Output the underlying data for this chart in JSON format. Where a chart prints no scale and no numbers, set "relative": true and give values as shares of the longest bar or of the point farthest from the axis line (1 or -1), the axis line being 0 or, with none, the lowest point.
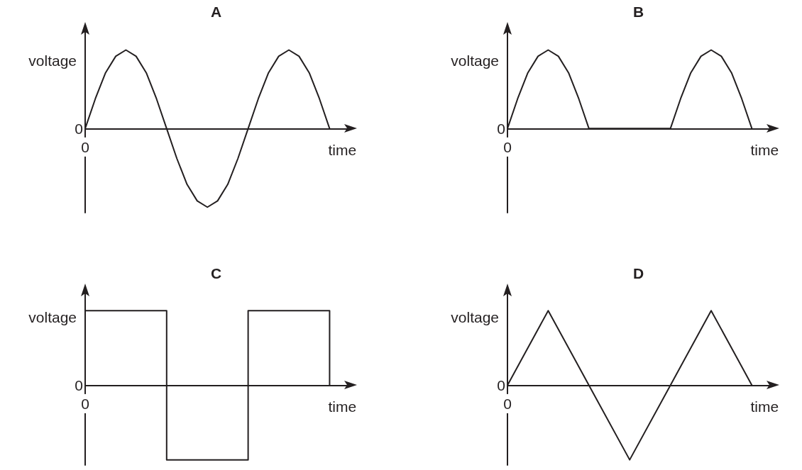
{
  "chart_data": [
    {
      "type": "line",
      "title": "A",
      "xlabel": "time",
      "ylabel": "voltage",
      "relative": true,
      "marker": "none",
      "color": "#231f20",
      "annotations": [
        "0",
        "0"
      ],
      "categories": [
        null,
        null,
        null,
        null,
        null,
        null,
        null,
        null,
        null,
        null,
        null,
        null,
        null,
        null,
        null,
        null,
        null,
        null,
        null,
        null,
        null,
        null,
        null,
        null,
        null
      ],
      "values": [
        0,
        0.38,
        0.71,
        0.92,
        1,
        0.92,
        0.71,
        0.38,
        0,
        -0.38,
        -0.71,
        -0.92,
        -1,
        -0.92,
        -0.71,
        -0.38,
        0,
        0.38,
        0.71,
        0.92,
        1,
        0.92,
        0.71,
        0.38,
        0
      ]
    },
    {
      "type": "line",
      "title": "B",
      "xlabel": "time",
      "ylabel": "voltage",
      "relative": true,
      "marker": "none",
      "color": "#231f20",
      "annotations": [
        "0",
        "0"
      ],
      "categories": [
        null,
        null,
        null,
        null,
        null,
        null,
        null,
        null,
        null,
        null,
        null,
        null,
        null,
        null,
        null,
        null,
        null,
        null,
        null,
        null,
        null,
        null,
        null,
        null,
        null
      ],
      "values": [
        0,
        0.38,
        0.71,
        0.92,
        1,
        0.92,
        0.71,
        0.38,
        0,
        0,
        0,
        0,
        0,
        0,
        0,
        0,
        0,
        0.38,
        0.71,
        0.92,
        1,
        0.92,
        0.71,
        0.38,
        0
      ]
    },
    {
      "type": "step",
      "title": "C",
      "xlabel": "time",
      "ylabel": "voltage",
      "relative": true,
      "marker": "none",
      "color": "#231f20",
      "annotations": [
        "0",
        "0"
      ],
      "categories": [
        null,
        null,
        null,
        null
      ],
      "values": [
        1,
        -1,
        1,
        0
      ]
    },
    {
      "type": "line",
      "title": "D",
      "xlabel": "time",
      "ylabel": "voltage",
      "relative": true,
      "marker": "none",
      "color": "#231f20",
      "annotations": [
        "0",
        "0"
      ],
      "categories": [
        null,
        null,
        null,
        null,
        null,
        null,
        null
      ],
      "values": [
        0,
        1,
        0,
        -1,
        0,
        1,
        0
      ]
    }
  ]
}
